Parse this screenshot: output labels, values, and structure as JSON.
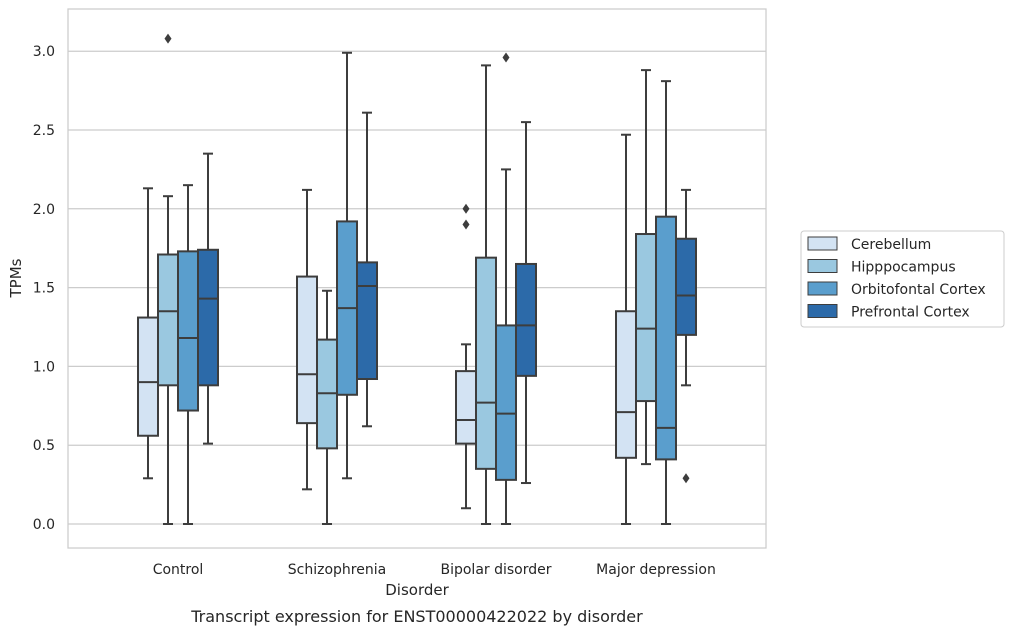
{
  "chart_data": {
    "type": "box",
    "caption": "Transcript expression for ENST00000422022 by disorder",
    "xlabel": "Disorder",
    "ylabel": "TPMs",
    "ylim": [
      -0.15,
      3.25
    ],
    "yticks": [
      "0.0",
      "0.5",
      "1.0",
      "1.5",
      "2.0",
      "2.5",
      "3.0"
    ],
    "grid": "horizontal",
    "legend_position": "right",
    "categories": [
      "Control",
      "Schizophrenia",
      "Bipolar disorder",
      "Major depression"
    ],
    "series": [
      {
        "name": "Cerebellum",
        "color": "#d3e3f3",
        "boxes": [
          {
            "whislo": 0.29,
            "q1": 0.56,
            "med": 0.9,
            "q3": 1.31,
            "whishi": 2.13,
            "fliers": []
          },
          {
            "whislo": 0.22,
            "q1": 0.64,
            "med": 0.95,
            "q3": 1.57,
            "whishi": 2.12,
            "fliers": []
          },
          {
            "whislo": 0.1,
            "q1": 0.51,
            "med": 0.66,
            "q3": 0.97,
            "whishi": 1.14,
            "fliers": [
              1.9,
              2.0
            ]
          },
          {
            "whislo": 0.0,
            "q1": 0.42,
            "med": 0.71,
            "q3": 1.35,
            "whishi": 2.47,
            "fliers": []
          }
        ]
      },
      {
        "name": "Hipppocampus",
        "color": "#9ac8e0",
        "boxes": [
          {
            "whislo": 0.0,
            "q1": 0.88,
            "med": 1.35,
            "q3": 1.71,
            "whishi": 2.08,
            "fliers": [
              3.08
            ]
          },
          {
            "whislo": 0.0,
            "q1": 0.48,
            "med": 0.83,
            "q3": 1.17,
            "whishi": 1.48,
            "fliers": []
          },
          {
            "whislo": 0.0,
            "q1": 0.35,
            "med": 0.77,
            "q3": 1.69,
            "whishi": 2.91,
            "fliers": []
          },
          {
            "whislo": 0.38,
            "q1": 0.78,
            "med": 1.24,
            "q3": 1.84,
            "whishi": 2.88,
            "fliers": []
          }
        ]
      },
      {
        "name": "Orbitofontal Cortex",
        "color": "#5a9ecd",
        "boxes": [
          {
            "whislo": 0.0,
            "q1": 0.72,
            "med": 1.18,
            "q3": 1.73,
            "whishi": 2.15,
            "fliers": []
          },
          {
            "whislo": 0.29,
            "q1": 0.82,
            "med": 1.37,
            "q3": 1.92,
            "whishi": 2.99,
            "fliers": []
          },
          {
            "whislo": 0.0,
            "q1": 0.28,
            "med": 0.7,
            "q3": 1.26,
            "whishi": 2.25,
            "fliers": [
              2.96
            ]
          },
          {
            "whislo": 0.0,
            "q1": 0.41,
            "med": 0.61,
            "q3": 1.95,
            "whishi": 2.81,
            "fliers": []
          }
        ]
      },
      {
        "name": "Prefrontal Cortex",
        "color": "#2c6aa9",
        "boxes": [
          {
            "whislo": 0.51,
            "q1": 0.88,
            "med": 1.43,
            "q3": 1.74,
            "whishi": 2.35,
            "fliers": []
          },
          {
            "whislo": 0.62,
            "q1": 0.92,
            "med": 1.51,
            "q3": 1.66,
            "whishi": 2.61,
            "fliers": []
          },
          {
            "whislo": 0.26,
            "q1": 0.94,
            "med": 1.26,
            "q3": 1.65,
            "whishi": 2.55,
            "fliers": []
          },
          {
            "whislo": 0.88,
            "q1": 1.2,
            "med": 1.45,
            "q3": 1.81,
            "whishi": 2.12,
            "fliers": [
              0.29
            ]
          }
        ]
      }
    ]
  }
}
